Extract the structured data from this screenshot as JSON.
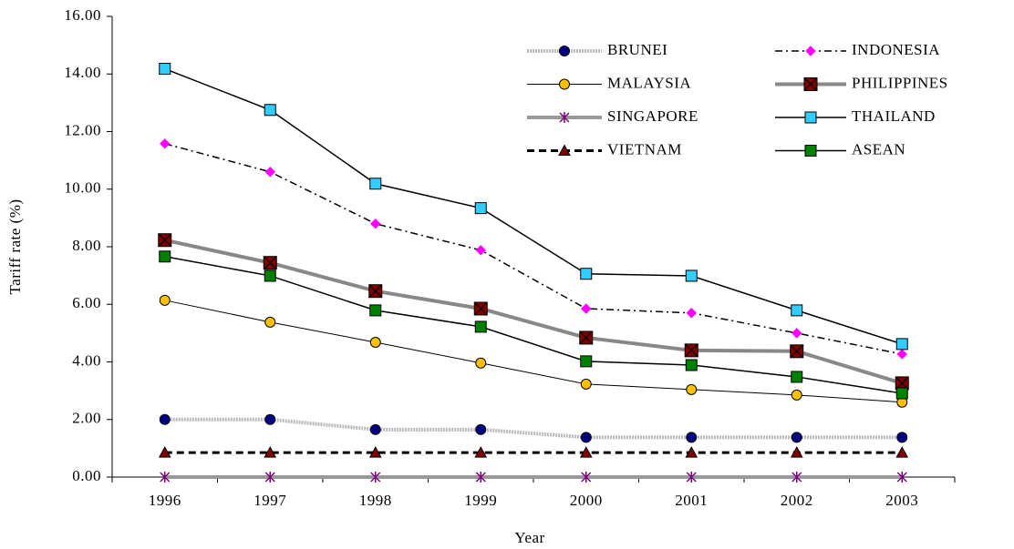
{
  "chart_data": {
    "type": "line",
    "y_label": "Tariff rate (%)",
    "x_label": "Year",
    "categories": [
      "1996",
      "1997",
      "1998",
      "1999",
      "2000",
      "2001",
      "2002",
      "2003"
    ],
    "ylim": [
      0,
      16
    ],
    "yticks": [
      {
        "value": 0,
        "label": "0.00"
      },
      {
        "value": 2,
        "label": "2.00"
      },
      {
        "value": 4,
        "label": "4.00"
      },
      {
        "value": 6,
        "label": "6.00"
      },
      {
        "value": 8,
        "label": "8.00"
      },
      {
        "value": 10,
        "label": "10.00"
      },
      {
        "value": 12,
        "label": "12.00"
      },
      {
        "value": 14,
        "label": "14.00"
      },
      {
        "value": 16,
        "label": "16.00"
      }
    ],
    "series": [
      {
        "name": "BRUNEI",
        "color": "#000080",
        "line_color": "#bbbbbb",
        "line_style": "dotted",
        "marker": "circle",
        "values": [
          2.0,
          2.0,
          1.65,
          1.65,
          1.38,
          1.38,
          1.38,
          1.38
        ]
      },
      {
        "name": "INDONESIA",
        "color": "#ff00ff",
        "line_color": "#000000",
        "line_style": "dashdot",
        "marker": "diamond",
        "values": [
          11.58,
          10.6,
          8.8,
          7.88,
          5.85,
          5.7,
          5.0,
          4.27
        ]
      },
      {
        "name": "MALAYSIA",
        "color": "#ffc000",
        "line_color": "#000000",
        "line_style": "thin",
        "marker": "circle",
        "values": [
          6.14,
          5.38,
          4.68,
          3.96,
          3.23,
          3.04,
          2.85,
          2.6
        ]
      },
      {
        "name": "PHILIPPINES",
        "color": "#800000",
        "line_color": "#888888",
        "line_style": "thick",
        "marker": "xsquare",
        "values": [
          8.23,
          7.44,
          6.46,
          5.85,
          4.84,
          4.4,
          4.37,
          3.26
        ]
      },
      {
        "name": "SINGAPORE",
        "color": "#800080",
        "line_color": "#999999",
        "line_style": "thick",
        "marker": "asterisk",
        "values": [
          0,
          0,
          0,
          0,
          0,
          0,
          0,
          0
        ]
      },
      {
        "name": "THAILAND",
        "color": "#33ccff",
        "line_color": "#000000",
        "line_style": "solid",
        "marker": "square",
        "values": [
          14.18,
          12.75,
          10.19,
          9.34,
          7.06,
          6.99,
          5.79,
          4.62
        ]
      },
      {
        "name": "VIETNAM",
        "color": "#800000",
        "line_color": "#000000",
        "line_style": "dashed",
        "marker": "triangle",
        "values": [
          0.85,
          0.85,
          0.85,
          0.85,
          0.85,
          0.85,
          0.85,
          0.85
        ]
      },
      {
        "name": "ASEAN",
        "color": "#008000",
        "line_color": "#000000",
        "line_style": "solid",
        "marker": "square",
        "values": [
          7.66,
          6.99,
          5.79,
          5.22,
          4.02,
          3.89,
          3.48,
          2.91
        ]
      }
    ]
  }
}
